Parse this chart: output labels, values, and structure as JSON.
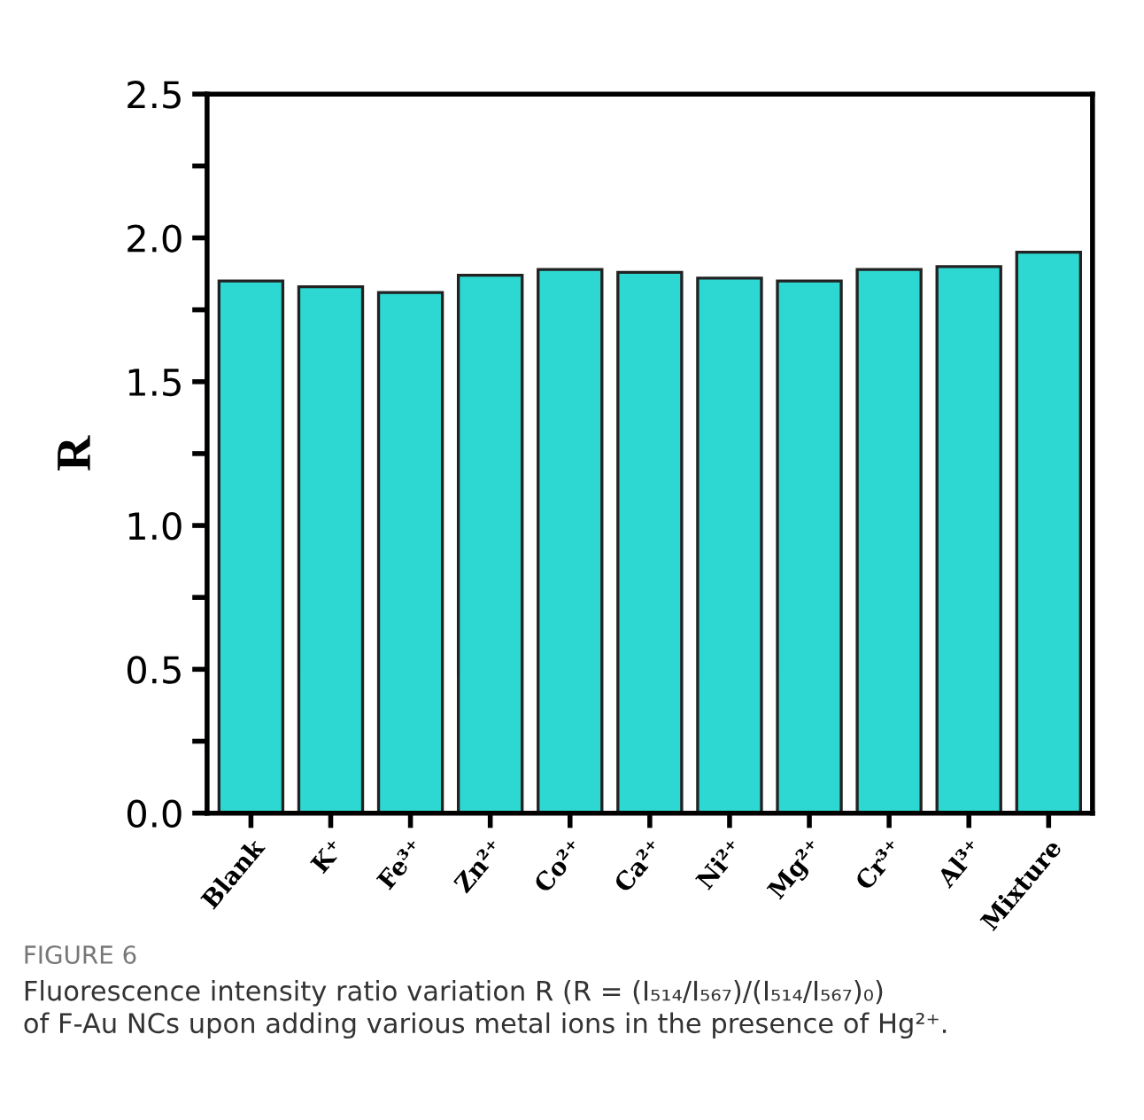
{
  "chart_data": {
    "type": "bar",
    "ylabel": "R",
    "categories": [
      "Blank",
      "K⁺",
      "Fe³⁺",
      "Zn²⁺",
      "Co²⁺",
      "Ca²⁺",
      "Ni²⁺",
      "Mg²⁺",
      "Cr³⁺",
      "Al³⁺",
      "Mixture"
    ],
    "values": [
      1.85,
      1.83,
      1.81,
      1.87,
      1.89,
      1.88,
      1.86,
      1.85,
      1.89,
      1.9,
      1.95
    ],
    "color": "#2ed8d2",
    "ylim": [
      0,
      2.5
    ],
    "yticks": [
      {
        "value": 0.0,
        "label": "0.0"
      },
      {
        "value": 0.25,
        "label": null
      },
      {
        "value": 0.5,
        "label": "0.5"
      },
      {
        "value": 0.75,
        "label": null
      },
      {
        "value": 1.0,
        "label": "1.0"
      },
      {
        "value": 1.25,
        "label": null
      },
      {
        "value": 1.5,
        "label": "1.5"
      },
      {
        "value": 1.75,
        "label": null
      },
      {
        "value": 2.0,
        "label": "2.0"
      },
      {
        "value": 2.25,
        "label": null
      },
      {
        "value": 2.5,
        "label": "2.5"
      }
    ],
    "grid": false,
    "legend": false,
    "annotations": [
      "FIGURE 6",
      "Fluorescence intensity ratio variation R (R = (I₅₁₄/I₅₆₇)/(I₅₁₄/I₅₆₇)₀)\nof F-Au NCs upon adding various metal ions in the presence of Hg²⁺."
    ]
  }
}
